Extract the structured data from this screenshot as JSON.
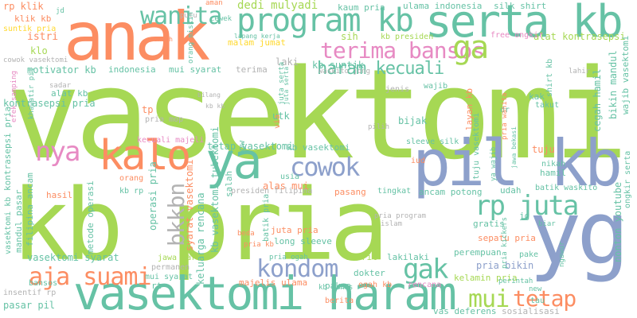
{
  "palette": {
    "lime": "#a6d854",
    "teal": "#66c2a5",
    "orange": "#fc8d62",
    "blue": "#8da0cb",
    "pink": "#e78ac3",
    "yellow": "#ffd92f",
    "tan": "#e5c494",
    "grey": "#b3b3b3"
  },
  "words": {
    "vasektomi": "vasektomi",
    "kb_pria": "kb pria",
    "anak": "anak",
    "serta_kb": "serta kb",
    "program_kb": "program kb",
    "pil_kb": "pil kb",
    "yg": "yg",
    "vasektomi_haram": "vasektomi haram",
    "kalo": "kalo",
    "ya": "ya",
    "wanita": "wanita",
    "terima_bansos": "terima bansos",
    "haram_kecuali": "haram kecuali",
    "ga": "ga",
    "nya": "nya",
    "cowok": "cowok",
    "kondom": "kondom",
    "aja_suami": "aja suami",
    "rp_juta": "rp juta",
    "gak": "gak",
    "mui": "mui",
    "tetap": "tetap",
    "bkkbn": "bkkbn",
    "dedi_mulyadi": "dedi mulyadi",
    "kaum_pria": "kaum pria",
    "ulama_indonesia": "ulama indonesia",
    "silk_shirt": "silk shirt",
    "alat_kontrasepsi": "alat kontrasepsi",
    "free_ongkir": "free ongkir",
    "kb_presiden": "kb presiden",
    "sih": "sih",
    "malam_jumat": "malam jumat",
    "laki": "laki",
    "kb_suntik": "kb suntik",
    "motivator_kb": "motivator kb",
    "indonesia": "indonesia",
    "mui_syarat": "mui syarat",
    "terima": "terima",
    "waskito_jong": "waskito jong",
    "istri": "istri",
    "klo": "klo",
    "cowok_vasektomi": "cowok vasektomi",
    "klik_kb": "klik kb",
    "rp_klik": "rp klik",
    "suntik_pria": "suntik pria",
    "jd": "jd",
    "tp": "tp",
    "pria_mop": "pria mop",
    "kecuali_majeli": "kecuali majeli",
    "kontrasepsi_pria": "kontrasepsi pria",
    "alat_kb": "alat kb",
    "utk": "utk",
    "bijak": "bijak",
    "tetap_vasektomi": "tetap vasektomi",
    "kb_vasektomi": "kb vasektomi",
    "tuju": "tuju",
    "hamil": "hamil",
    "alas_mui": "alas mui",
    "pasang": "pasang",
    "tingkat": "tingkat",
    "ancam_potong": "ancam potong",
    "udah": "udah",
    "batik_waskito": "batik waskito",
    "presiden_filipina": "presiden filipina",
    "keluarga_rencana": "keluarga rencana",
    "hasil": "hasil",
    "orang": "orang",
    "kb_rp": "kb rp",
    "salah": "salah",
    "gw": "gw",
    "juta_pria": "juta pria",
    "long_sleeve": "long sleeve",
    "sepatu_pria": "sepatu pria",
    "pria_program": "pria program",
    "perempuan": "perempuan",
    "pria_bikin": "pria bikin",
    "kelamin_pria": "kelamin pria",
    "vasektomi_syarat": "vasektomi syarat",
    "jawa_barat": "jawa barat",
    "permanen": "permanen",
    "mui_syarat_2": "mui syarat",
    "steril": "steril",
    "lakilaki": "lakilaki",
    "pria_ogah": "pria ogah",
    "dokter": "dokter",
    "majelis_ulama": "majelis ulama",
    "paksa": "paksa",
    "ogah_kb": "ogah kb",
    "rencana": "rencana",
    "berita": "berita",
    "vas_deferens": "vas deferens",
    "sosialisasi": "sosialisasi",
    "pasar_pil": "pasar pil",
    "insentif_rp": "insentif rp",
    "bansos": "bansos",
    "rt": "rt",
    "kontrasepsi_pria_v": "kontrasepsi pria",
    "vasektomi_kb": "vasektomi kb",
    "mandul_pasar": "mandul pasar",
    "filipina_ancam": "filipina ancam",
    "metode_operasi": "metode operasi",
    "operasi_pria": "operasi pria",
    "syarat_vasektomi": "syarat vasektomi",
    "kb_vasektomi_tubektomi": "kb vasektomi tubektomi",
    "juta_serta": "juta serta",
    "cegah_hamil": "cegah hamil",
    "bikin_mandul": "bikin mandul",
    "wajib_vasektomi": "wajib vasektomi",
    "nonton_youtube": "nonton youtube",
    "ongkir_serta": "ongkir serta",
    "kak": "kak",
    "takut": "takut",
    "nikah": "nikah",
    "jg": "jg",
    "biar": "biar",
    "pake": "pake",
    "new": "new",
    "tau": "tau",
    "batik_pria": "batik pria",
    "usia": "usia",
    "beda": "beda",
    "gratis": "gratis",
    "jenis": "jenis",
    "wajib": "wajib",
    "dr": "dr",
    "shirt_kb": "shirt kb",
    "lahir": "lahir",
    "layan_kb": "layan kb",
    "pilih": "pilih",
    "via": "via",
    "iud": "iud",
    "islam": "islam",
    "pria_wanita": "pria wanita",
    "tuju_vasektomi": "tuju vasektomi",
    "jawa_bekasi": "jawa bekasi",
    "juta_serta_2": "juta serta",
    "kb_hanas": "kb hanas",
    "sadar": "sadar",
    "efek_samping": "efek samping",
    "khawatir_pil": "khawatir pil",
    "putu": "putu",
    "aman": "aman",
    "cewek": "cewek",
    "rendah": "rendah",
    "orang_miskin": "orang miskin",
    "bilang": "bilang",
    "sleeve_silk": "sleeve silk",
    "pria_kickers": "pria kickers",
    "perintah": "perintah",
    "ya_wajib": "ya wajib",
    "ngawur": "ngawur",
    "pria_kb": "pria kb",
    "lapang_kerja": "lapang kerja",
    "kb_kb": "kb kb"
  }
}
